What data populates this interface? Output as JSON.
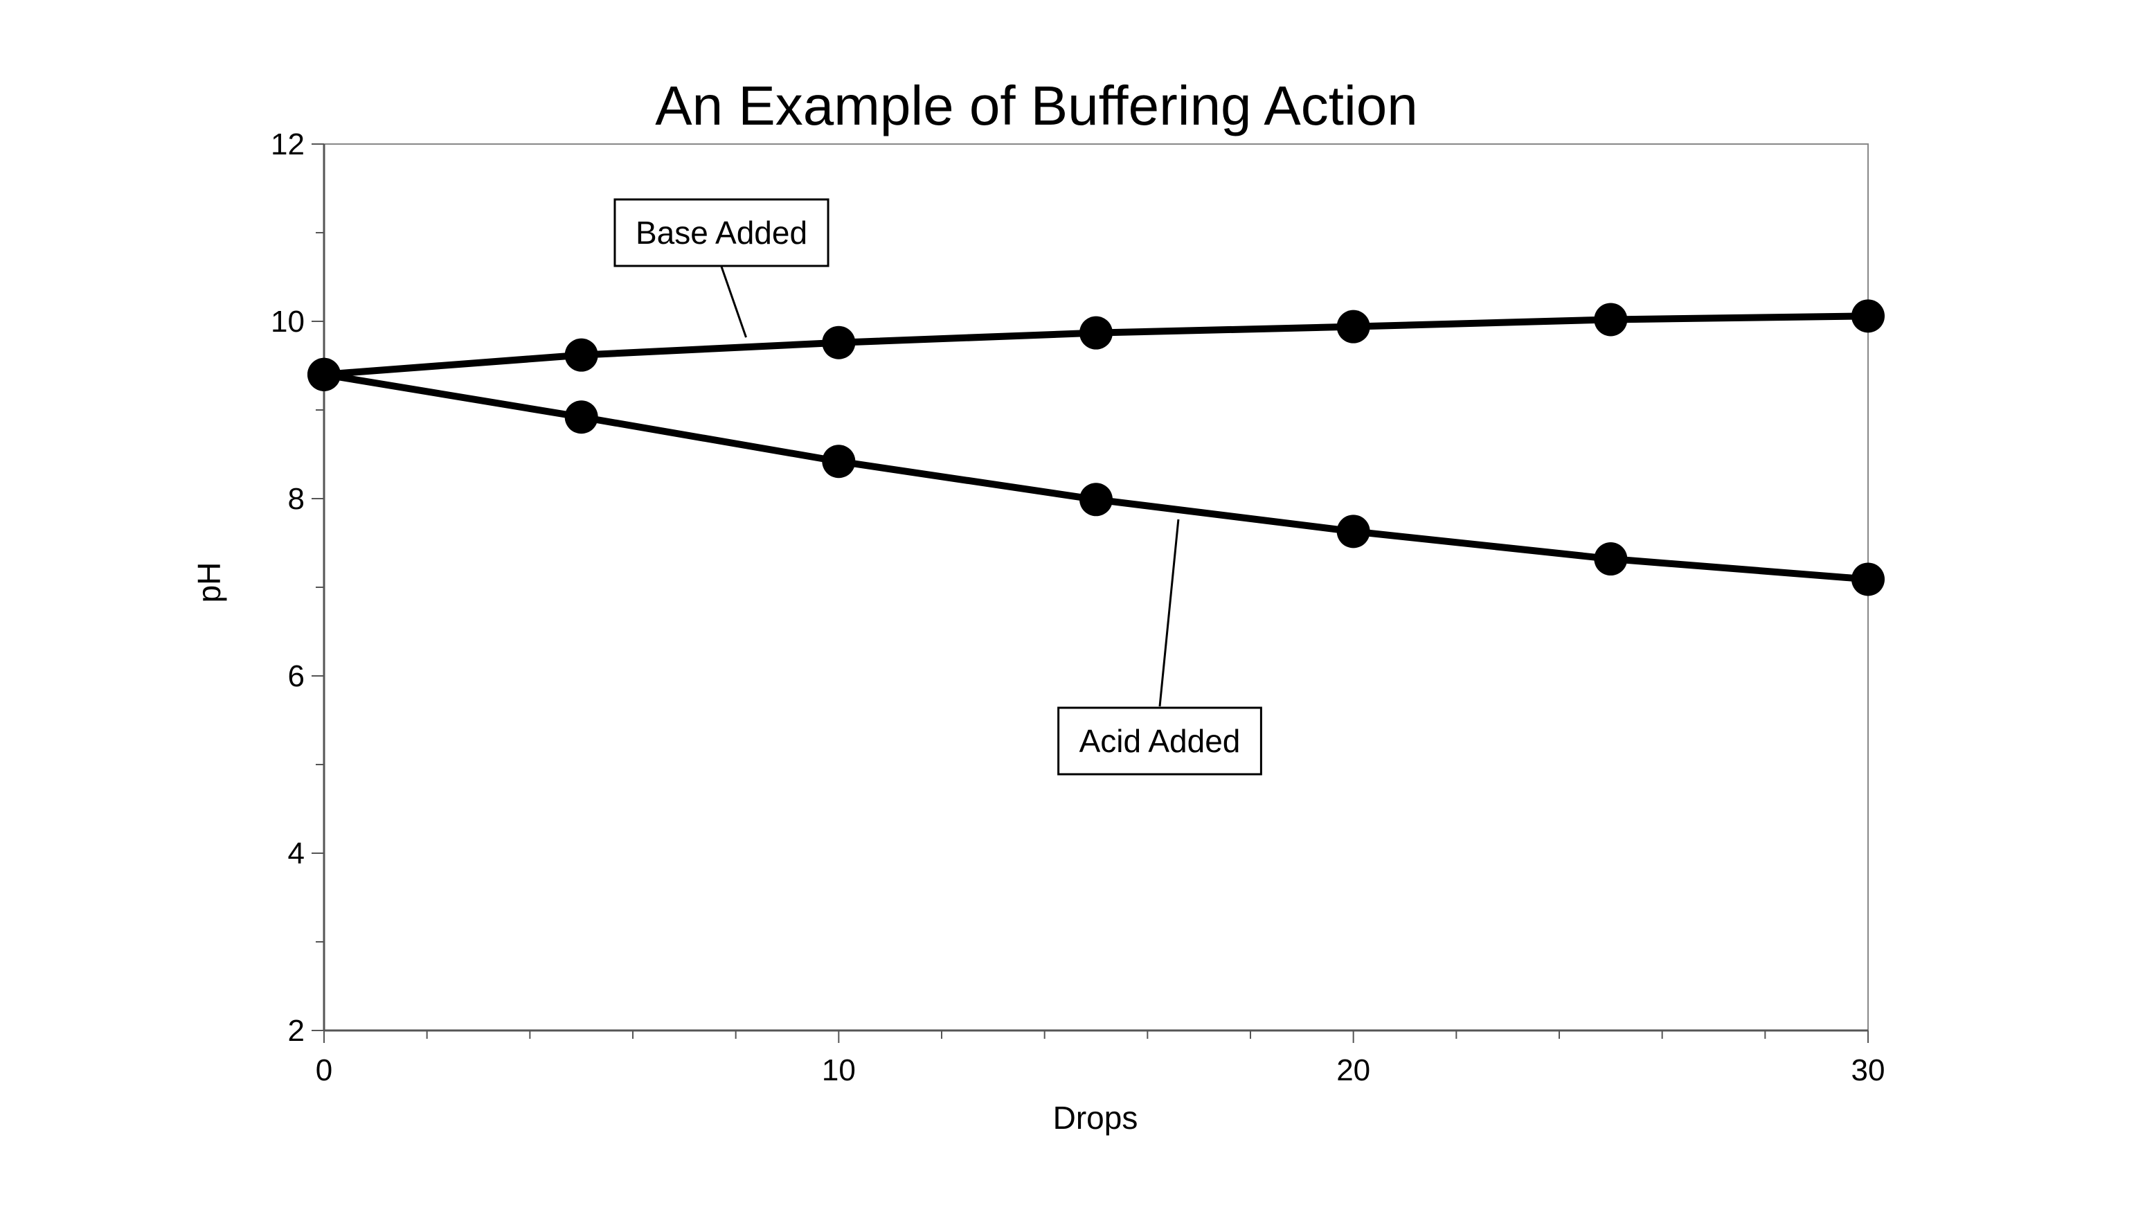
{
  "chart_data": {
    "type": "line",
    "title": "An Example of Buffering Action",
    "xlabel": "Drops",
    "ylabel": "pH",
    "xlim": [
      0,
      30
    ],
    "ylim": [
      2,
      12
    ],
    "x_major_ticks": [
      0,
      10,
      20,
      30
    ],
    "x_minor_step": 2,
    "y_major_ticks": [
      2,
      4,
      6,
      8,
      10,
      12
    ],
    "y_minor_step": 1,
    "grid": false,
    "x": [
      0,
      5,
      10,
      15,
      20,
      25,
      30
    ],
    "series": [
      {
        "values": [
          9.4,
          9.62,
          9.76,
          9.87,
          9.94,
          10.02,
          10.06
        ]
      },
      {
        "values": [
          9.4,
          8.92,
          8.42,
          7.99,
          7.63,
          7.32,
          7.09
        ]
      }
    ],
    "annotations": [
      {
        "text": "Base Added",
        "series_index": 0,
        "placement": "above"
      },
      {
        "text": "Acid Added",
        "series_index": 1,
        "placement": "below"
      }
    ],
    "colors": {
      "line": "#000000",
      "marker": "#000000",
      "axis": "#555555"
    }
  }
}
